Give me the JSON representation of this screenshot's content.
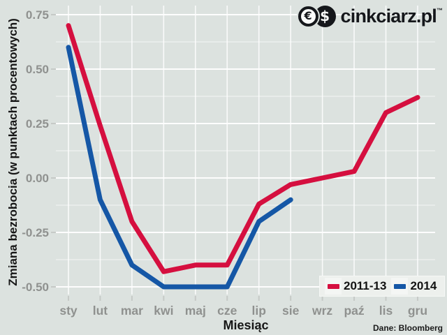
{
  "logo": {
    "brand": "cinkciarz.pl",
    "trademark": "™",
    "euro_symbol": "€",
    "dollar_symbol": "$"
  },
  "source_note": "Dane: Bloomberg",
  "style": {
    "background": "#dce2df",
    "gridline": "#ffffff",
    "tick_color": "#c6cac7",
    "tick_label_color": "#8f918f",
    "axis_title_color": "#161616"
  },
  "chart_data": {
    "type": "line",
    "title": "",
    "xlabel": "Miesiąc",
    "ylabel": "Zmiana bezrobocia (w punktach procentowych)",
    "categories": [
      "sty",
      "lut",
      "mar",
      "kwi",
      "maj",
      "cze",
      "lip",
      "sie",
      "wrz",
      "paź",
      "lis",
      "gru"
    ],
    "y_ticks": [
      0.75,
      0.5,
      0.25,
      0.0,
      -0.25,
      -0.5
    ],
    "y_minor_ticks": [
      0.625,
      0.375,
      0.125,
      -0.125,
      -0.375
    ],
    "ylim": [
      -0.55,
      0.8
    ],
    "grid": true,
    "legend_position": "bottom-right-inside",
    "series": [
      {
        "name": "2011-13",
        "color": "#d50f3f",
        "values": [
          0.7,
          0.24,
          -0.2,
          -0.43,
          -0.4,
          -0.4,
          -0.12,
          -0.03,
          0.0,
          0.03,
          0.3,
          0.37
        ]
      },
      {
        "name": "2014",
        "color": "#1557a6",
        "values": [
          0.6,
          -0.1,
          -0.4,
          -0.5,
          -0.5,
          -0.5,
          -0.2,
          -0.1,
          null,
          null,
          null,
          null
        ]
      }
    ]
  }
}
